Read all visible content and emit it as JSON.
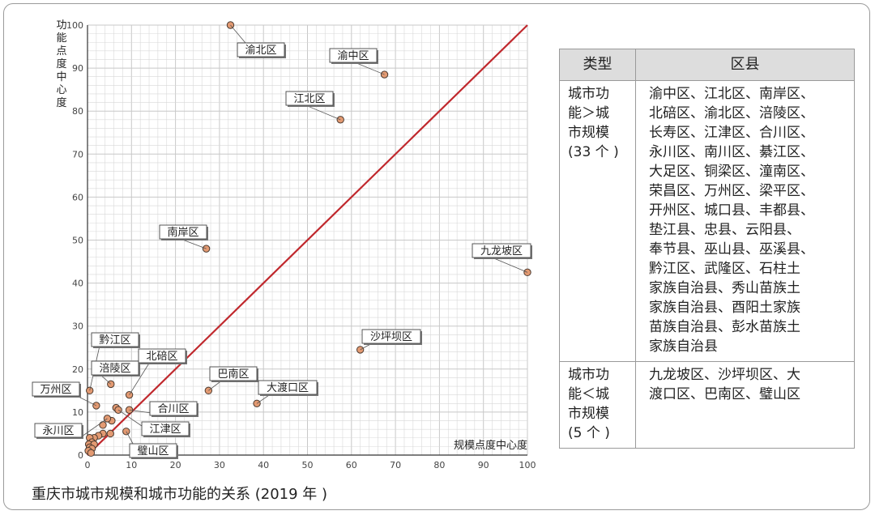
{
  "caption": "重庆市城市规模和城市功能的关系 (2019 年 )",
  "colors": {
    "line": "#c0282d",
    "point_fill": "#e39a72",
    "point_stroke": "#4a3a30",
    "grid": "#d8d8d8",
    "header_bg": "#dddddd"
  },
  "chart_data": {
    "type": "scatter",
    "xlabel": "规模点度中心度",
    "ylabel": "功能点度中心度",
    "xlim": [
      0,
      100
    ],
    "ylim": [
      0,
      100
    ],
    "xticks": [
      "0",
      "10",
      "20",
      "30",
      "40",
      "50",
      "60",
      "70",
      "80",
      "90",
      "100"
    ],
    "yticks": [
      "0",
      "10",
      "20",
      "30",
      "40",
      "50",
      "60",
      "70",
      "80",
      "90",
      "100"
    ],
    "grid": true,
    "reference_line": {
      "from": [
        0,
        0
      ],
      "to": [
        100,
        100
      ]
    },
    "labeled_points": [
      {
        "label": "渝北区",
        "x": 32.5,
        "y": 100
      },
      {
        "label": "渝中区",
        "x": 67.5,
        "y": 88.5
      },
      {
        "label": "江北区",
        "x": 57.5,
        "y": 78
      },
      {
        "label": "南岸区",
        "x": 27,
        "y": 48
      },
      {
        "label": "九龙坡区",
        "x": 100,
        "y": 42.5
      },
      {
        "label": "沙坪坝区",
        "x": 62,
        "y": 24.5
      },
      {
        "label": "巴南区",
        "x": 27.5,
        "y": 15
      },
      {
        "label": "大渡口区",
        "x": 38.5,
        "y": 12
      },
      {
        "label": "黔江区",
        "x": 0.5,
        "y": 15
      },
      {
        "label": "涪陵区",
        "x": 5.3,
        "y": 16.5
      },
      {
        "label": "北碚区",
        "x": 9.5,
        "y": 14
      },
      {
        "label": "万州区",
        "x": 2,
        "y": 11.5
      },
      {
        "label": "合川区",
        "x": 9.5,
        "y": 10.5
      },
      {
        "label": "永川区",
        "x": 4.5,
        "y": 8.5
      },
      {
        "label": "江津区",
        "x": 7,
        "y": 10.5
      },
      {
        "label": "璧山区",
        "x": 8.8,
        "y": 5.5
      }
    ],
    "unlabeled_points": [
      {
        "x": 6.5,
        "y": 11
      },
      {
        "x": 3.5,
        "y": 7
      },
      {
        "x": 5.5,
        "y": 8
      },
      {
        "x": 3.5,
        "y": 5
      },
      {
        "x": 5.2,
        "y": 5
      },
      {
        "x": 2.5,
        "y": 4.5
      },
      {
        "x": 1.5,
        "y": 4
      },
      {
        "x": 0.5,
        "y": 4
      },
      {
        "x": 1,
        "y": 3
      },
      {
        "x": 0.3,
        "y": 2.5
      },
      {
        "x": 1.5,
        "y": 2.5
      },
      {
        "x": 0.5,
        "y": 1.8
      },
      {
        "x": 1,
        "y": 1.5
      },
      {
        "x": 0.2,
        "y": 1
      },
      {
        "x": 0.8,
        "y": 0.5
      }
    ]
  },
  "table": {
    "headers": [
      "类型",
      "区县"
    ],
    "rows": [
      {
        "type_lines": [
          "城市功",
          "能＞城",
          "市规模",
          "(33 个 )"
        ],
        "list_lines": [
          "渝中区、江北区、南岸区、",
          "北碚区、渝北区、涪陵区、",
          "长寿区、江津区、合川区、",
          "永川区、南川区、綦江区、",
          "大足区、铜梁区、潼南区、",
          "荣昌区、万州区、梁平区、",
          "开州区、城口县、丰都县、",
          "垫江县、忠县、云阳县、",
          "奉节县、巫山县、巫溪县、",
          "黔江区、武隆区、石柱土",
          "家族自治县、秀山苗族土",
          "家族自治县、酉阳土家族",
          "苗族自治县、彭水苗族土",
          "家族自治县"
        ]
      },
      {
        "type_lines": [
          "城市功",
          "能＜城",
          "市规模",
          "(5 个 )"
        ],
        "list_lines": [
          "九龙坡区、沙坪坝区、大",
          "渡口区、巴南区、璧山区"
        ]
      }
    ]
  }
}
